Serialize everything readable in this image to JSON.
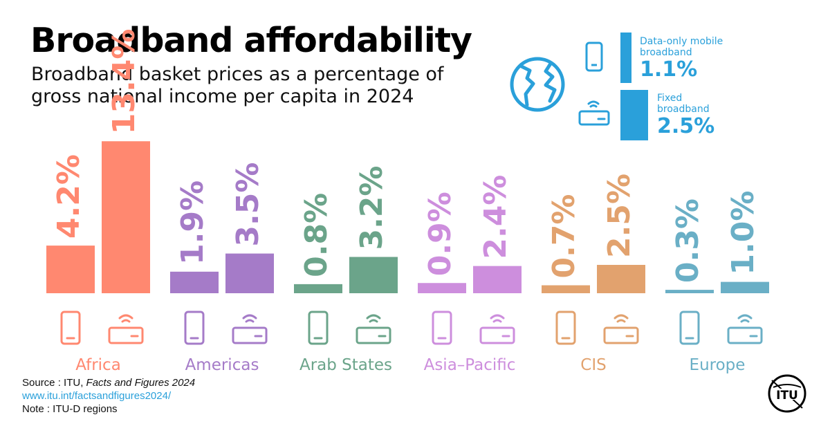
{
  "title": "Broadband affordability",
  "subtitle": "Broadband basket prices as a percentage of gross national income per capita in 2024",
  "legend": {
    "mobile": {
      "label": "Data-only mobile broadband",
      "value": "1.1%"
    },
    "fixed": {
      "label": "Fixed broadband",
      "value": "2.5%"
    }
  },
  "footer": {
    "source_prefix": "Source : ITU, ",
    "source_title": "Facts and Figures 2024",
    "url": "www.itu.int/factsandfigures2024/",
    "note": "Note : ITU-D regions"
  },
  "logo_text": "ITU",
  "colors": {
    "legend": "#2AA0DA",
    "Africa": "#FF8870",
    "Americas": "#A57BC8",
    "Arab States": "#6BA48A",
    "Asia–Pacific": "#CD8EDD",
    "CIS": "#E2A26E",
    "Europe": "#6AAFC6"
  },
  "chart_data": {
    "type": "bar",
    "categories": [
      "Africa",
      "Americas",
      "Arab States",
      "Asia–Pacific",
      "CIS",
      "Europe"
    ],
    "series": [
      {
        "name": "Data-only mobile broadband",
        "values": [
          4.2,
          1.9,
          0.8,
          0.9,
          0.7,
          0.3
        ],
        "labels": [
          "4.2%",
          "1.9%",
          "0.8%",
          "0.9%",
          "0.7%",
          "0.3%"
        ]
      },
      {
        "name": "Fixed broadband",
        "values": [
          13.4,
          3.5,
          3.2,
          2.4,
          2.5,
          1.0
        ],
        "labels": [
          "13.4%",
          "3.5%",
          "3.2%",
          "2.4%",
          "2.5%",
          "1.0%"
        ]
      }
    ],
    "title": "Broadband affordability",
    "xlabel": "",
    "ylabel": "",
    "grid": false
  }
}
